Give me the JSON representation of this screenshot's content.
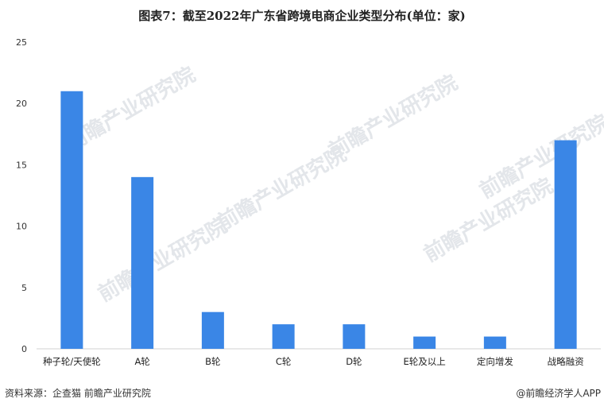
{
  "chart_data": {
    "type": "bar",
    "title": "图表7：截至2022年广东省跨境电商企业类型分布(单位：家)",
    "categories": [
      "种子轮/天使轮",
      "A轮",
      "B轮",
      "C轮",
      "D轮",
      "E轮及以上",
      "定向增发",
      "战略融资"
    ],
    "values": [
      21,
      14,
      3,
      2,
      2,
      1,
      1,
      17
    ],
    "ylim": [
      0,
      25
    ],
    "yticks": [
      0,
      5,
      10,
      15,
      20,
      25
    ],
    "xlabel": "",
    "ylabel": "",
    "grid": false,
    "bar_color": "#3a86e6"
  },
  "footer": {
    "source": "资料来源：企查猫 前瞻产业研究院",
    "credit": "@前瞻经济学人APP"
  },
  "watermark": "前瞻产业研究院"
}
